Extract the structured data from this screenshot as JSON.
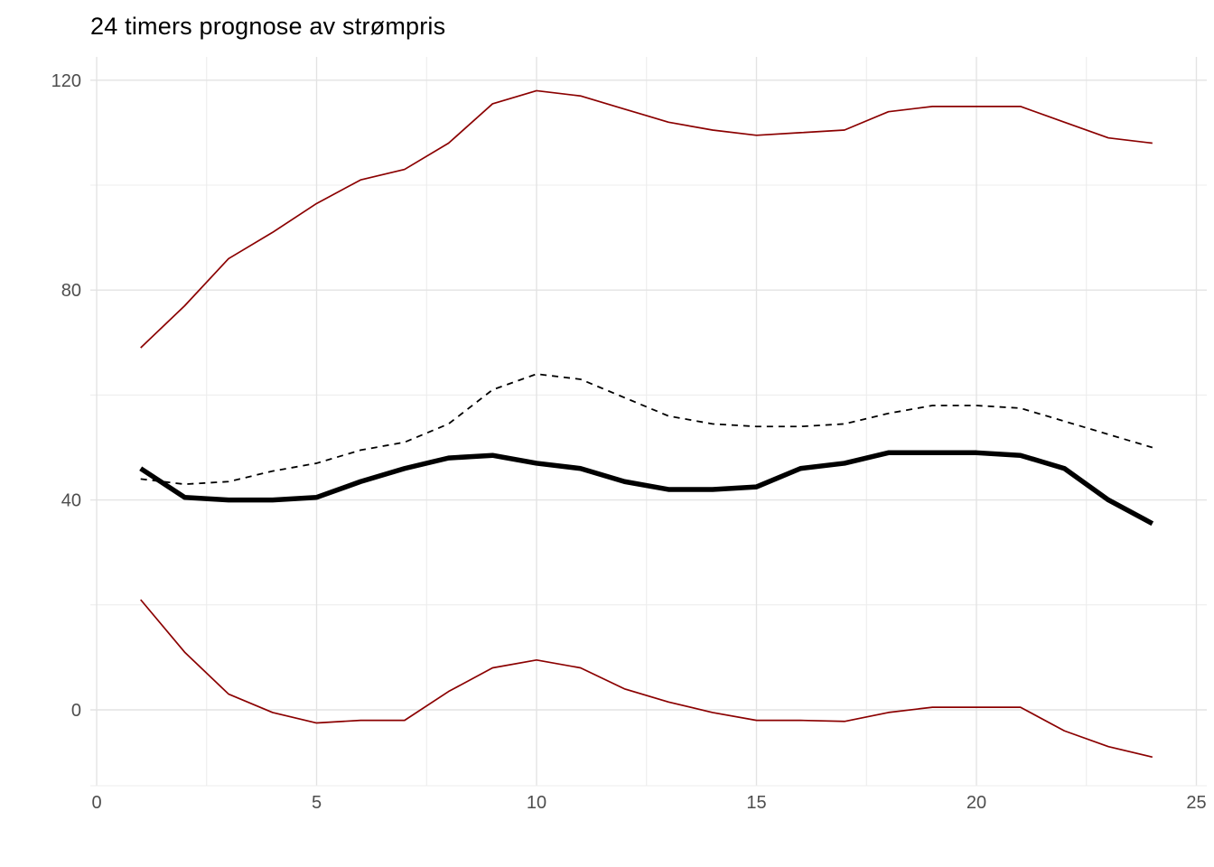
{
  "chart_data": {
    "type": "line",
    "title": "24 timers prognose av strømpris",
    "xlabel": "",
    "ylabel": "",
    "legend": "none",
    "grid": true,
    "xlim": [
      -0.15,
      25.25
    ],
    "ylim": [
      -15.4,
      124.4
    ],
    "x_ticks": [
      0,
      5,
      10,
      15,
      20,
      25
    ],
    "x_minor_ticks": [
      2.5,
      7.5,
      12.5,
      17.5,
      22.5
    ],
    "y_ticks": [
      0,
      40,
      80,
      120
    ],
    "y_minor_ticks": [
      20,
      60,
      100
    ],
    "x": [
      1,
      2,
      3,
      4,
      5,
      6,
      7,
      8,
      9,
      10,
      11,
      12,
      13,
      14,
      15,
      16,
      17,
      18,
      19,
      20,
      21,
      22,
      23,
      24
    ],
    "series": [
      {
        "name": "upper-interval-bound",
        "color": "#8B0000",
        "width": 1.7,
        "dash": "solid",
        "values": [
          69,
          77,
          86,
          91,
          96.5,
          101,
          103,
          108,
          115.5,
          118,
          117,
          114.5,
          112,
          110.5,
          109.5,
          110,
          110.5,
          114,
          115,
          115,
          115,
          112,
          109,
          108
        ]
      },
      {
        "name": "forecast-dashed",
        "color": "#000000",
        "width": 1.8,
        "dash": "dashed",
        "values": [
          44,
          43,
          43.5,
          45.5,
          47,
          49.5,
          51,
          54.5,
          61,
          64,
          63,
          59.5,
          56,
          54.5,
          54,
          54,
          54.5,
          56.5,
          58,
          58,
          57.5,
          55,
          52.5,
          50
        ]
      },
      {
        "name": "forecast-thick",
        "color": "#000000",
        "width": 5.5,
        "dash": "solid",
        "values": [
          46,
          40.5,
          40,
          40,
          40.5,
          43.5,
          46,
          48,
          48.5,
          47,
          46,
          43.5,
          42,
          42,
          42.5,
          46,
          47,
          49,
          49,
          49,
          48.5,
          46,
          40,
          35.5
        ]
      },
      {
        "name": "lower-interval-bound",
        "color": "#8B0000",
        "width": 1.7,
        "dash": "solid",
        "values": [
          21,
          11,
          3,
          -0.5,
          -2.5,
          -2,
          -2,
          3.5,
          8,
          9.5,
          8,
          4,
          1.5,
          -0.5,
          -2,
          -2,
          -2.2,
          -0.5,
          0.5,
          0.5,
          0.5,
          -4,
          -7,
          -9
        ]
      }
    ],
    "colors": {
      "background": "#FFFFFF",
      "grid_major": "#E3E3E3",
      "grid_minor": "#ECECEC",
      "axis_text": "#4D4D4D",
      "title_text": "#000000",
      "bound_line": "#8B0000",
      "forecast_line": "#000000"
    }
  }
}
